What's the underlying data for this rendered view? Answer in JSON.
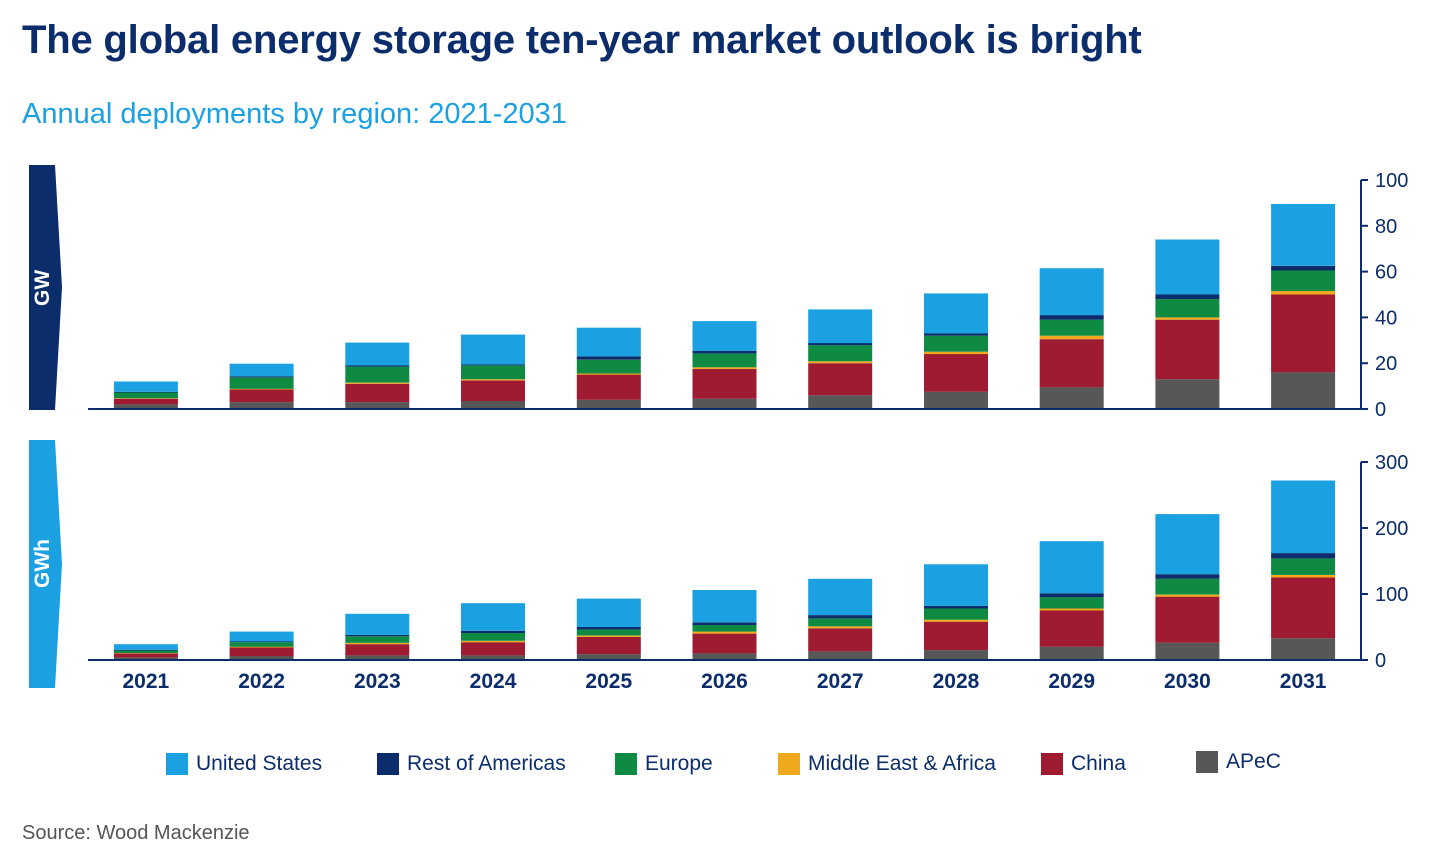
{
  "title": "The global energy storage ten-year market outlook is bright",
  "subtitle": "Annual deployments  by region: 2021-2031",
  "source": "Source: Wood Mackenzie",
  "colors": {
    "United States": "#1ba0e2",
    "Rest of Americas": "#0b2d6b",
    "Europe": "#0e8a43",
    "Middle East & Africa": "#f0a81c",
    "China": "#9e1b32",
    "APeC": "#575757",
    "axis": "#0b2d6b",
    "tab_gw": "#0b2d6b",
    "tab_gwh": "#1ba0e2"
  },
  "chart_data": [
    {
      "type": "bar",
      "stacked": true,
      "title": "GW",
      "ylabel": "GW",
      "ylim": [
        0,
        100
      ],
      "yticks": [
        0,
        20,
        40,
        60,
        80,
        100
      ],
      "categories": [
        "2021",
        "2022",
        "2023",
        "2024",
        "2025",
        "2026",
        "2027",
        "2028",
        "2029",
        "2030",
        "2031"
      ],
      "series": [
        {
          "name": "APeC",
          "values": [
            2,
            3,
            3,
            3.5,
            4,
            4.5,
            6,
            7.5,
            9.5,
            13,
            16
          ]
        },
        {
          "name": "China",
          "values": [
            2.5,
            5.5,
            8,
            9,
            11,
            13,
            14,
            16.5,
            21,
            26,
            34
          ]
        },
        {
          "name": "Middle East & Africa",
          "values": [
            0.2,
            0.3,
            0.5,
            0.5,
            0.5,
            0.7,
            0.8,
            1,
            1.5,
            1,
            1.5
          ]
        },
        {
          "name": "Europe",
          "values": [
            2.5,
            5,
            7,
            6,
            6,
            6,
            7,
            7,
            7,
            8,
            9
          ]
        },
        {
          "name": "Rest of Americas",
          "values": [
            0.3,
            0.5,
            0.5,
            0.5,
            1.5,
            1.2,
            1,
            1,
            2,
            2,
            2
          ]
        },
        {
          "name": "United States",
          "values": [
            4.5,
            5.5,
            10,
            13,
            12.5,
            13,
            14.7,
            17.5,
            20.5,
            24,
            27
          ]
        }
      ]
    },
    {
      "type": "bar",
      "stacked": true,
      "title": "GWh",
      "ylabel": "GWh",
      "ylim": [
        0,
        300
      ],
      "yticks": [
        0,
        100,
        200,
        300
      ],
      "categories": [
        "2021",
        "2022",
        "2023",
        "2024",
        "2025",
        "2026",
        "2027",
        "2028",
        "2029",
        "2030",
        "2031"
      ],
      "series": [
        {
          "name": "APeC",
          "values": [
            4,
            6,
            7,
            7,
            9,
            10,
            13,
            15,
            20,
            26,
            33
          ]
        },
        {
          "name": "China",
          "values": [
            6,
            13,
            17,
            20,
            26,
            30,
            35,
            43,
            55,
            70,
            92
          ]
        },
        {
          "name": "Middle East & Africa",
          "values": [
            0.5,
            1,
            2,
            2,
            2,
            3,
            3,
            3,
            3,
            3,
            4
          ]
        },
        {
          "name": "Europe",
          "values": [
            4,
            7,
            10,
            12,
            9,
            10,
            12,
            17,
            17,
            24,
            25
          ]
        },
        {
          "name": "Rest of Americas",
          "values": [
            1,
            1,
            2,
            3,
            4,
            4,
            5,
            4,
            6,
            7,
            8
          ]
        },
        {
          "name": "United States",
          "values": [
            8.5,
            15,
            32,
            42,
            43,
            49,
            55,
            63,
            79,
            91,
            110
          ]
        }
      ]
    }
  ],
  "legend_order": [
    "United States",
    "Rest of Americas",
    "Europe",
    "Middle East & Africa",
    "China",
    "APeC"
  ]
}
